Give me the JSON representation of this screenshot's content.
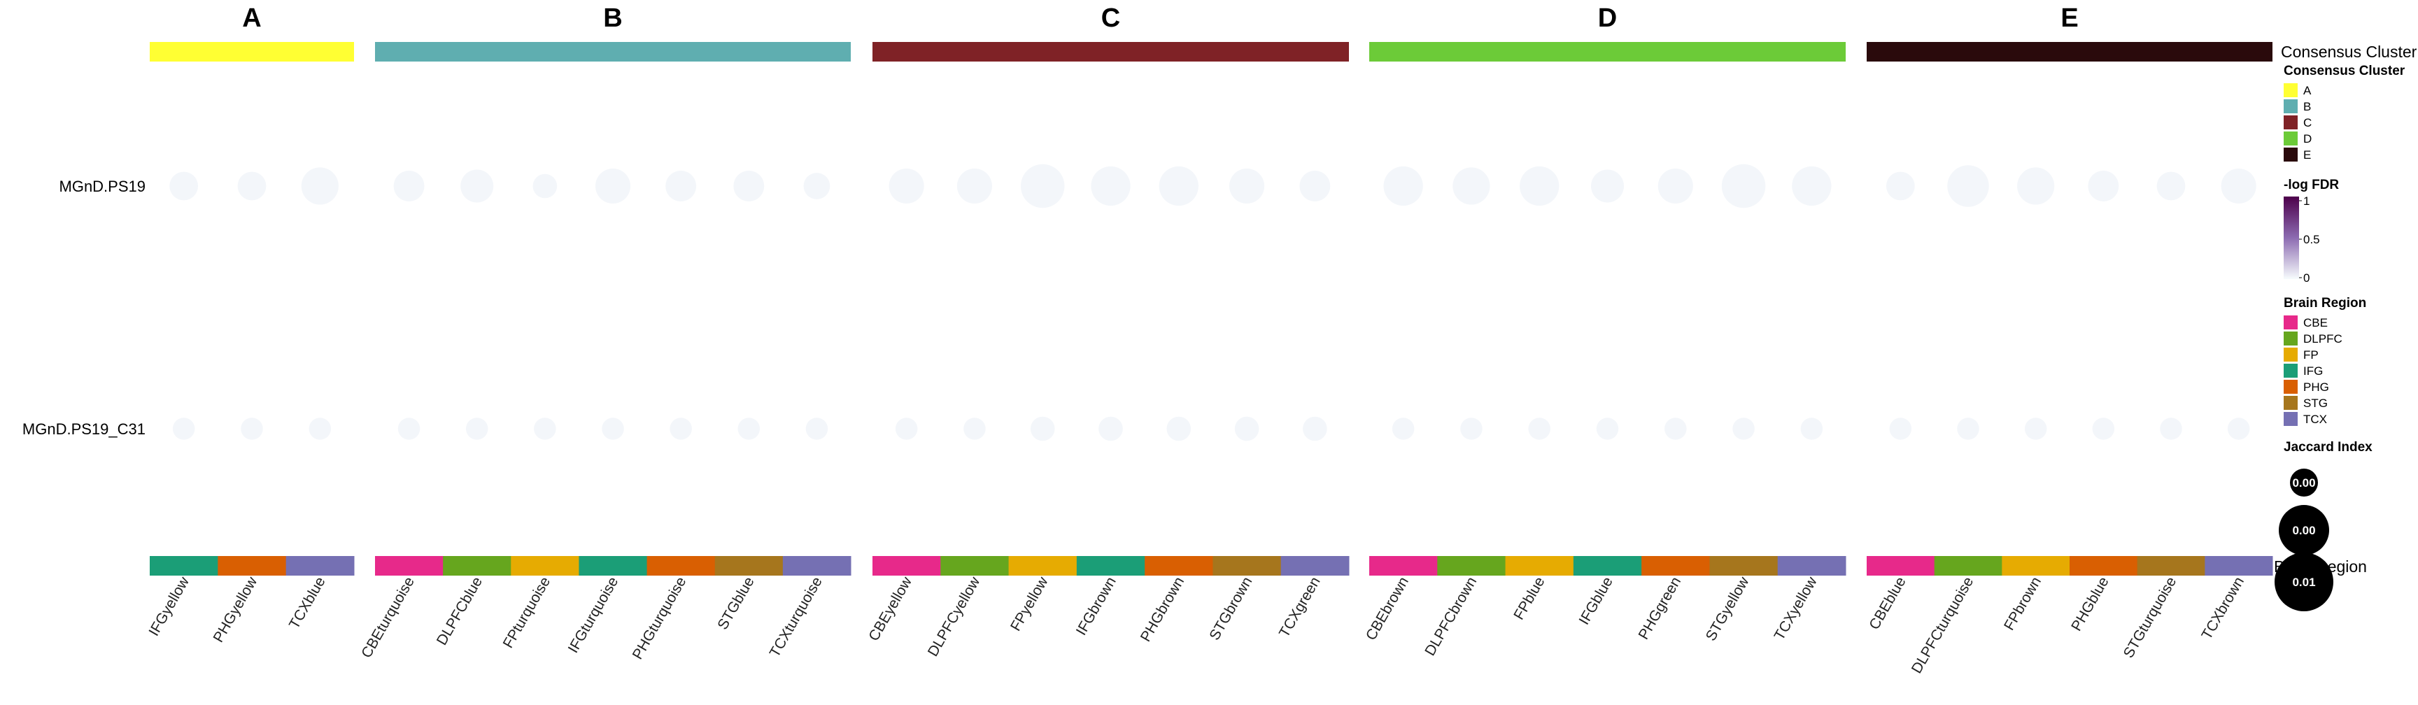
{
  "chart_data": {
    "type": "heatmap",
    "title": "",
    "rows": [
      "MGnD.PS19",
      "MGnD.PS19_C31"
    ],
    "cluster_track_label": "Consensus Cluster",
    "bottom_track_label": "Brain Region",
    "clusters": [
      {
        "name": "A",
        "color": "#FFFF33",
        "columns": [
          "IFGyellow",
          "PHGyellow",
          "TCXblue"
        ]
      },
      {
        "name": "B",
        "color": "#5FAEB0",
        "columns": [
          "CBEturquoise",
          "DLPFCblue",
          "FPturquoise",
          "IFGturquoise",
          "PHGturquoise",
          "STGblue",
          "TCXturquoise"
        ]
      },
      {
        "name": "C",
        "color": "#7F2226",
        "columns": [
          "CBEyellow",
          "DLPFCyellow",
          "FPyellow",
          "IFGbrown",
          "PHGbrown",
          "STGbrown",
          "TCXgreen"
        ]
      },
      {
        "name": "D",
        "color": "#6CCB38",
        "columns": [
          "CBEbrown",
          "DLPFCbrown",
          "FPblue",
          "IFGblue",
          "PHGgreen",
          "STGyellow",
          "TCXyellow"
        ]
      },
      {
        "name": "E",
        "color": "#2A0A0C",
        "columns": [
          "CBEblue",
          "DLPFCturquoise",
          "FPbrown",
          "PHGblue",
          "STGturquoise",
          "TCXbrown"
        ]
      }
    ],
    "region_colors": {
      "CBE": "#E7298A",
      "DLPFC": "#66A61E",
      "FP": "#E6AB02",
      "IFG": "#1B9E77",
      "PHG": "#D95F02",
      "STG": "#A6761D",
      "TCX": "#7570B3"
    },
    "jaccard": [
      [
        0.004,
        0.004,
        0.006,
        0.0045,
        0.005,
        0.003,
        0.0055,
        0.0045,
        0.0045,
        0.0035,
        0.0055,
        0.0055,
        0.0075,
        0.0065,
        0.0065,
        0.0055,
        0.0045,
        0.0065,
        0.006,
        0.0065,
        0.005,
        0.0055,
        0.0075,
        0.0065,
        0.004,
        0.007,
        0.006,
        0.0045,
        0.004,
        0.0055
      ],
      [
        0.0025,
        0.0025,
        0.0025,
        0.0025,
        0.0025,
        0.0025,
        0.0025,
        0.0025,
        0.0025,
        0.0025,
        0.0025,
        0.0025,
        0.003,
        0.003,
        0.003,
        0.003,
        0.003,
        0.0025,
        0.0025,
        0.0025,
        0.0025,
        0.0025,
        0.0025,
        0.0025,
        0.0025,
        0.0025,
        0.0025,
        0.0025,
        0.0025,
        0.0025
      ]
    ],
    "neg_log_fdr": [
      [
        0.02,
        0.02,
        0.02,
        0.02,
        0.02,
        0.02,
        0.02,
        0.02,
        0.02,
        0.02,
        0.02,
        0.02,
        0.02,
        0.02,
        0.02,
        0.02,
        0.02,
        0.02,
        0.02,
        0.02,
        0.02,
        0.02,
        0.02,
        0.02,
        0.02,
        0.02,
        0.02,
        0.02,
        0.02,
        0.02
      ],
      [
        0.02,
        0.02,
        0.02,
        0.02,
        0.02,
        0.02,
        0.02,
        0.02,
        0.02,
        0.02,
        0.02,
        0.02,
        0.02,
        0.02,
        0.02,
        0.02,
        0.02,
        0.02,
        0.02,
        0.02,
        0.02,
        0.02,
        0.02,
        0.02,
        0.02,
        0.02,
        0.02,
        0.02,
        0.02,
        0.02
      ]
    ],
    "legend": {
      "consensus": {
        "title": "Consensus Cluster",
        "items": [
          "A",
          "B",
          "C",
          "D",
          "E"
        ]
      },
      "fdr": {
        "title": "-log FDR",
        "ticks": [
          "1",
          "0.5",
          "0"
        ],
        "colors": [
          "#F7FCFD",
          "#8C6BB1",
          "#4D004B"
        ]
      },
      "region": {
        "title": "Brain Region",
        "items": [
          "CBE",
          "DLPFC",
          "FP",
          "IFG",
          "PHG",
          "STG",
          "TCX"
        ]
      },
      "jaccard": {
        "title": "Jaccard Index",
        "items": [
          {
            "label": "0.00",
            "value": 0.0
          },
          {
            "label": "0.00",
            "value": 0.005
          },
          {
            "label": "0.01",
            "value": 0.01
          }
        ]
      }
    }
  }
}
